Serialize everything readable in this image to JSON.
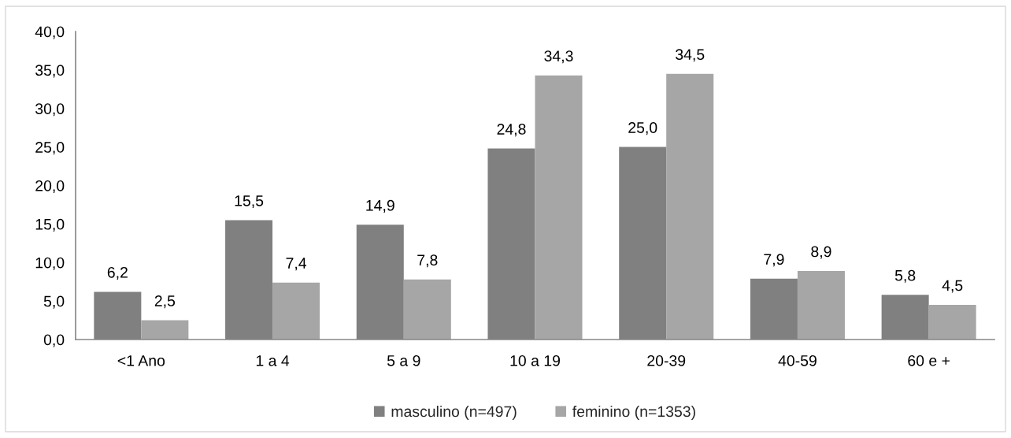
{
  "chart_data": {
    "type": "bar",
    "categories": [
      "<1 Ano",
      "1 a 4",
      "5 a 9",
      "10 a 19",
      "20-39",
      "40-59",
      "60 e +"
    ],
    "series": [
      {
        "name": "masculino (n=497)",
        "color": "#808080",
        "values": [
          6.2,
          15.5,
          14.9,
          24.8,
          25.0,
          7.9,
          5.8
        ],
        "value_labels": [
          "6,2",
          "15,5",
          "14,9",
          "24,8",
          "25,0",
          "7,9",
          "5,8"
        ]
      },
      {
        "name": "feminino (n=1353)",
        "color": "#a6a6a6",
        "values": [
          2.5,
          7.4,
          7.8,
          34.3,
          34.5,
          8.9,
          4.5
        ],
        "value_labels": [
          "2,5",
          "7,4",
          "7,8",
          "34,3",
          "34,5",
          "8,9",
          "4,5"
        ]
      }
    ],
    "ylim": [
      0,
      40
    ],
    "yticks": [
      {
        "value": 0,
        "label": "0,0"
      },
      {
        "value": 5,
        "label": "5,0"
      },
      {
        "value": 10,
        "label": "10,0"
      },
      {
        "value": 15,
        "label": "15,0"
      },
      {
        "value": 20,
        "label": "20,0"
      },
      {
        "value": 25,
        "label": "25,0"
      },
      {
        "value": 30,
        "label": "30,0"
      },
      {
        "value": 35,
        "label": "35,0"
      },
      {
        "value": 40,
        "label": "40,0"
      }
    ],
    "grid": false,
    "legend": "bottom"
  }
}
